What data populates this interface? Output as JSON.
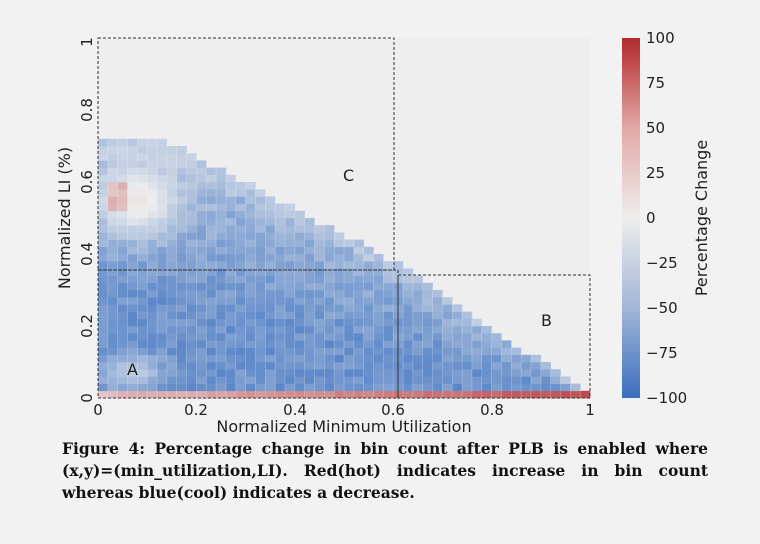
{
  "chart_data": {
    "type": "heatmap",
    "xlabel": "Normalized Minimum Utilization",
    "ylabel": "Normalized LI (%)",
    "x_ticks": [
      "0",
      "0.2",
      "0.4",
      "0.6",
      "0.8",
      "1"
    ],
    "y_ticks": [
      "0",
      "0.2",
      "0.4",
      "0.6",
      "0.8",
      "1"
    ],
    "xlim": [
      0,
      1
    ],
    "ylim": [
      0,
      1
    ],
    "colorbar": {
      "label": "Percentage Change",
      "ticks": [
        "100",
        "75",
        "50",
        "25",
        "0",
        "−25",
        "−50",
        "−75",
        "−100"
      ],
      "range": [
        -100,
        100
      ],
      "colormap": "red-white-blue (coolwarm)",
      "color_high": "#b2282d",
      "color_mid": "#eeeeee",
      "color_low": "#3a6fbf"
    },
    "regions": [
      {
        "label": "A",
        "x_range": [
          0,
          0.61
        ],
        "y_range": [
          0,
          0.36
        ]
      },
      {
        "label": "B",
        "x_range": [
          0.61,
          1.0
        ],
        "y_range": [
          0,
          0.36
        ]
      },
      {
        "label": "C",
        "x_range": [
          0,
          0.6
        ],
        "y_range": [
          0.36,
          1.0
        ]
      }
    ],
    "value_summary": [
      {
        "area": "bottom row (LI near 0)",
        "x_range": [
          0,
          1.0
        ],
        "approx_change": 60
      },
      {
        "area": "hot spot",
        "x_range": [
          0.02,
          0.06
        ],
        "y_range": [
          0.52,
          0.6
        ],
        "approx_change": 30
      },
      {
        "area": "main body below diagonal",
        "approx_change": -60
      },
      {
        "area": "above diagonal / empty",
        "approx_change": 0
      }
    ]
  },
  "caption": "Figure 4: Percentage change in bin count after PLB is enabled where (x,y)=(min_utilization,LI). Red(hot) indicates increase in bin count whereas blue(cool) indicates a decrease."
}
